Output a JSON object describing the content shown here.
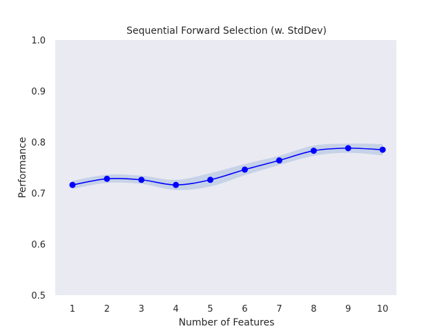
{
  "chart_data": {
    "type": "line",
    "title": "Sequential Forward Selection (w. StdDev)",
    "xlabel": "Number of Features",
    "ylabel": "Performance",
    "x": [
      1,
      2,
      3,
      4,
      5,
      6,
      7,
      8,
      9,
      10
    ],
    "series": [
      {
        "values": [
          0.716,
          0.728,
          0.726,
          0.716,
          0.726,
          0.746,
          0.764,
          0.783,
          0.788,
          0.785
        ],
        "std": [
          0.008,
          0.008,
          0.008,
          0.01,
          0.013,
          0.011,
          0.009,
          0.01,
          0.009,
          0.011
        ]
      }
    ],
    "xlim": [
      0.5,
      10.4
    ],
    "ylim": [
      0.5,
      1.0
    ],
    "yticks": [
      "0.5",
      "0.6",
      "0.7",
      "0.8",
      "0.9",
      "1.0"
    ],
    "xticks": [
      "1",
      "2",
      "3",
      "4",
      "5",
      "6",
      "7",
      "8",
      "9",
      "10"
    ],
    "grid": false,
    "colors": {
      "background": "#eaeaf2",
      "line": "#0000ff",
      "band": "#aec2e0"
    }
  }
}
